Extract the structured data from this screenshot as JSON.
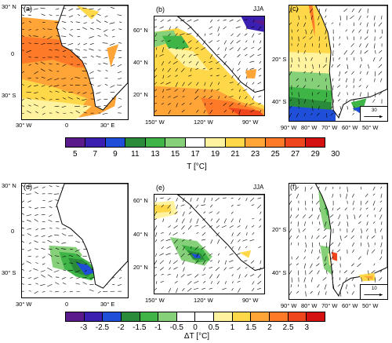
{
  "top": {
    "panels": [
      {
        "label": "(a)",
        "season": "",
        "yticks": [
          "30° N",
          "0",
          "30° S"
        ],
        "xticks": [
          "30° W",
          "0",
          "30° E"
        ]
      },
      {
        "label": "(b)",
        "season": "JJA",
        "yticks": [
          "60° N",
          "40° N",
          "20° N"
        ],
        "xticks": [
          "150° W",
          "120° W",
          "90° W"
        ]
      },
      {
        "label": "(c)",
        "season": "",
        "yticks": [
          "20° S",
          "40° S"
        ],
        "xticks": [
          "90° W",
          "80° W",
          "70° W",
          "60° W",
          "50° W"
        ],
        "ref_value": "30"
      }
    ],
    "colorbar": {
      "labels": [
        "5",
        "7",
        "9",
        "11",
        "13",
        "15",
        "17",
        "19",
        "21",
        "23",
        "25",
        "27",
        "29",
        "30"
      ],
      "title": "T [°C]",
      "colors": [
        "#5b1a8b",
        "#3a1fb0",
        "#1f4fd8",
        "#2a8c3a",
        "#3fb548",
        "#86d07a",
        "#ffffff",
        "#fff3a0",
        "#ffd84a",
        "#ffa436",
        "#ff7a28",
        "#f0461e",
        "#d41212"
      ]
    }
  },
  "bottom": {
    "panels": [
      {
        "label": "(d)",
        "season": "",
        "yticks": [
          "30° N",
          "0",
          "30° S"
        ],
        "xticks": [
          "30° W",
          "0",
          "30° E"
        ]
      },
      {
        "label": "(e)",
        "season": "JJA",
        "yticks": [
          "60° N",
          "40° N",
          "20° N"
        ],
        "xticks": [
          "150° W",
          "120° W",
          "90° W"
        ]
      },
      {
        "label": "(f)",
        "season": "",
        "yticks": [
          "20° S",
          "40° S"
        ],
        "xticks": [
          "90° W",
          "80° W",
          "70° W",
          "60° W",
          "50° W"
        ],
        "ref_value": "10"
      }
    ],
    "colorbar": {
      "labels": [
        "-3",
        "-2.5",
        "-2",
        "-1.5",
        "-1",
        "-0.5",
        "0",
        "0.5",
        "1",
        "1.5",
        "2",
        "2.5",
        "3"
      ],
      "title": "ΔT [°C]",
      "colors": [
        "#5b1a8b",
        "#3a1fb0",
        "#1f4fd8",
        "#2a8c3a",
        "#3fb548",
        "#86d07a",
        "#ffffff",
        "#ffffff",
        "#fff3a0",
        "#ffd84a",
        "#ffa436",
        "#ff7a28",
        "#f0461e",
        "#d41212"
      ]
    }
  }
}
